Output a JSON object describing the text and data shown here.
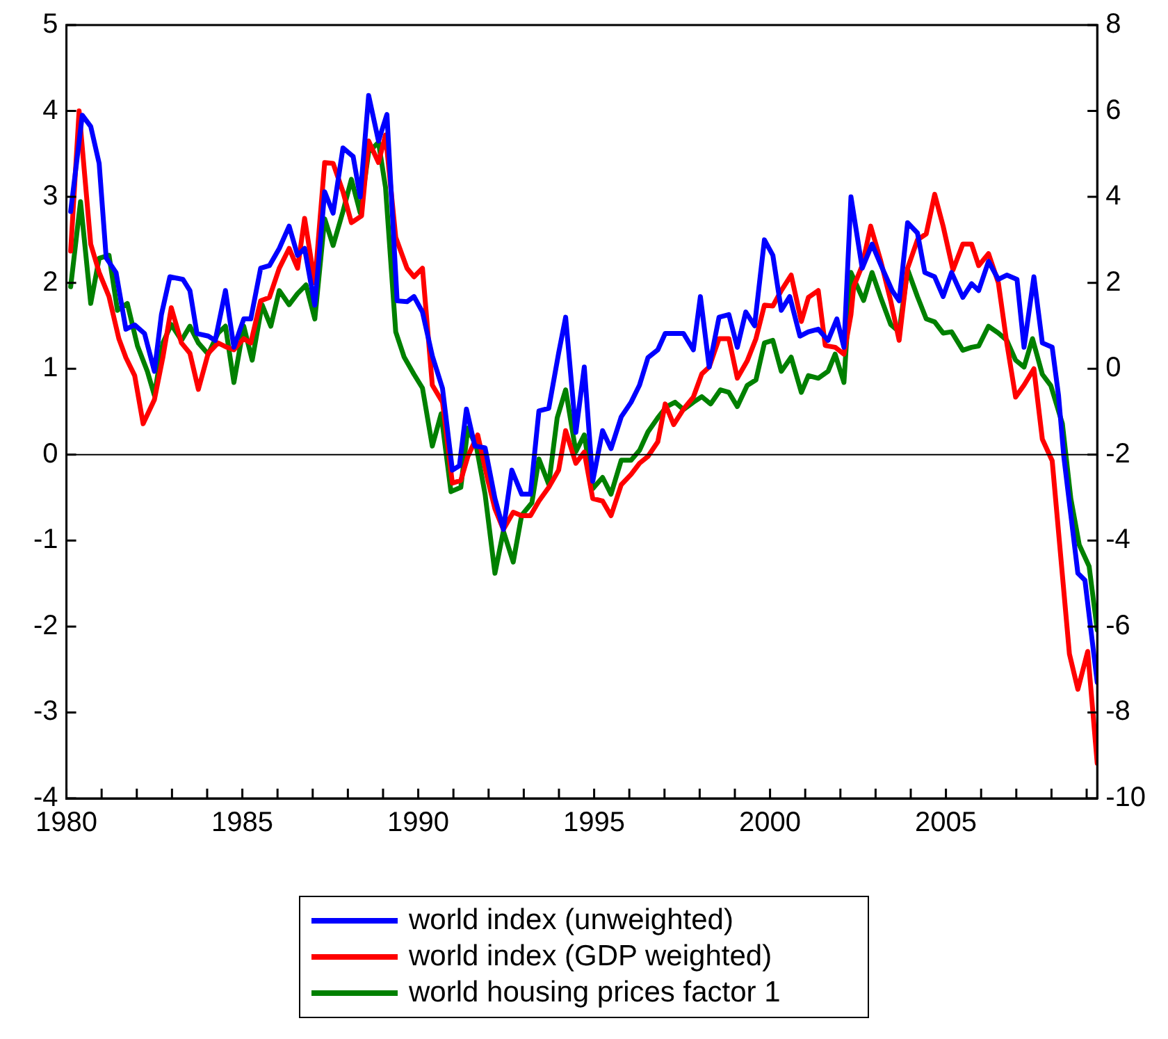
{
  "chart_data": {
    "type": "line",
    "xlim": [
      1980,
      2009.3
    ],
    "xticks": [
      1980,
      {
        "value": 1981,
        "label": null
      },
      {
        "value": 1982,
        "label": null
      },
      {
        "value": 1983,
        "label": null
      },
      {
        "value": 1984,
        "label": null
      },
      1985,
      {
        "value": 1986,
        "label": null
      },
      {
        "value": 1987,
        "label": null
      },
      {
        "value": 1988,
        "label": null
      },
      {
        "value": 1989,
        "label": null
      },
      1990,
      {
        "value": 1991,
        "label": null
      },
      {
        "value": 1992,
        "label": null
      },
      {
        "value": 1993,
        "label": null
      },
      {
        "value": 1994,
        "label": null
      },
      1995,
      {
        "value": 1996,
        "label": null
      },
      {
        "value": 1997,
        "label": null
      },
      {
        "value": 1998,
        "label": null
      },
      {
        "value": 1999,
        "label": null
      },
      2000,
      {
        "value": 2001,
        "label": null
      },
      {
        "value": 2002,
        "label": null
      },
      {
        "value": 2003,
        "label": null
      },
      {
        "value": 2004,
        "label": null
      },
      2005,
      {
        "value": 2006,
        "label": null
      },
      {
        "value": 2007,
        "label": null
      },
      {
        "value": 2008,
        "label": null
      },
      {
        "value": 2009,
        "label": null
      }
    ],
    "ylim": [
      -4,
      5
    ],
    "yticks": [
      -4,
      -3,
      -2,
      -1,
      0,
      1,
      2,
      3,
      4,
      5
    ],
    "y2lim": [
      -10,
      8
    ],
    "y2ticks": [
      -10,
      -8,
      -6,
      -4,
      -2,
      0,
      2,
      4,
      6,
      8
    ],
    "grid": false,
    "legend": "bottom",
    "marker": "none",
    "line_style": "solid",
    "ref_lines": [
      {
        "axis": "y",
        "value": 0,
        "color": "#000000"
      }
    ],
    "series": [
      {
        "name": "world index (unweighted)",
        "color": "#0000ff",
        "x": [
          1980.12,
          1980.45,
          1980.69,
          1980.93,
          1981.13,
          1981.41,
          1981.69,
          1981.94,
          1982.22,
          1982.5,
          1982.7,
          1982.94,
          1983.31,
          1983.51,
          1983.71,
          1984.03,
          1984.23,
          1984.52,
          1984.76,
          1985.04,
          1985.24,
          1985.52,
          1985.77,
          1986.05,
          1986.33,
          1986.57,
          1986.77,
          1987.06,
          1987.34,
          1987.58,
          1987.86,
          1988.15,
          1988.35,
          1988.59,
          1988.87,
          1989.11,
          1989.4,
          1989.68,
          1989.88,
          1990.12,
          1990.4,
          1990.69,
          1990.97,
          1991.17,
          1991.37,
          1991.61,
          1991.9,
          1992.18,
          1992.42,
          1992.66,
          1992.94,
          1993.19,
          1993.43,
          1993.71,
          1993.99,
          1994.19,
          1994.48,
          1994.72,
          1994.96,
          1995.24,
          1995.48,
          1995.77,
          1996.05,
          1996.29,
          1996.53,
          1996.81,
          1997.02,
          1997.54,
          1997.82,
          1998.02,
          1998.27,
          1998.55,
          1998.83,
          1999.07,
          1999.31,
          1999.56,
          1999.84,
          2000.08,
          2000.32,
          2000.56,
          2000.85,
          2001.09,
          2001.37,
          2001.65,
          2001.9,
          2002.1,
          2002.3,
          2002.62,
          2002.9,
          2003.19,
          2003.47,
          2003.67,
          2003.91,
          2004.19,
          2004.4,
          2004.68,
          2004.92,
          2005.16,
          2005.48,
          2005.73,
          2005.93,
          2006.21,
          2006.49,
          2006.73,
          2007.02,
          2007.22,
          2007.5,
          2007.74,
          2008.02,
          2008.2,
          2008.35,
          2008.75,
          2008.95,
          2009.3
        ],
        "values": [
          2.83,
          3.95,
          3.82,
          3.39,
          2.29,
          2.12,
          1.46,
          1.51,
          1.41,
          0.97,
          1.63,
          2.07,
          2.04,
          1.91,
          1.41,
          1.38,
          1.33,
          1.91,
          1.25,
          1.58,
          1.58,
          2.17,
          2.2,
          2.4,
          2.66,
          2.32,
          2.4,
          1.74,
          3.06,
          2.81,
          3.57,
          3.47,
          3.0,
          4.18,
          3.65,
          3.96,
          1.79,
          1.78,
          1.84,
          1.66,
          1.15,
          0.77,
          -0.18,
          -0.13,
          0.53,
          0.1,
          0.08,
          -0.51,
          -0.87,
          -0.18,
          -0.46,
          -0.46,
          0.51,
          0.54,
          1.18,
          1.6,
          0.26,
          1.02,
          -0.31,
          0.28,
          0.07,
          0.44,
          0.61,
          0.81,
          1.13,
          1.22,
          1.41,
          1.41,
          1.22,
          1.84,
          1.02,
          1.6,
          1.63,
          1.25,
          1.66,
          1.5,
          2.5,
          2.32,
          1.68,
          1.84,
          1.38,
          1.43,
          1.46,
          1.33,
          1.58,
          1.25,
          3.0,
          2.17,
          2.45,
          2.17,
          1.91,
          1.79,
          2.7,
          2.58,
          2.12,
          2.07,
          1.84,
          2.12,
          1.83,
          1.99,
          1.91,
          2.25,
          2.04,
          2.09,
          2.04,
          1.25,
          2.07,
          1.3,
          1.25,
          0.69,
          -0.02,
          -1.38,
          -1.46,
          -2.65
        ]
      },
      {
        "name": "world index (GDP weighted)",
        "color": "#ff0000",
        "x": [
          1980.12,
          1980.36,
          1980.69,
          1980.93,
          1981.21,
          1981.49,
          1981.69,
          1981.94,
          1982.18,
          1982.5,
          1982.74,
          1982.98,
          1983.27,
          1983.51,
          1983.75,
          1984.03,
          1984.31,
          1984.56,
          1984.76,
          1985.04,
          1985.24,
          1985.52,
          1985.77,
          1986.05,
          1986.33,
          1986.57,
          1986.77,
          1987.06,
          1987.34,
          1987.58,
          1987.86,
          1988.1,
          1988.39,
          1988.59,
          1988.87,
          1989.07,
          1989.36,
          1989.68,
          1989.88,
          1990.12,
          1990.4,
          1990.69,
          1990.97,
          1991.21,
          1991.41,
          1991.69,
          1991.98,
          1992.18,
          1992.42,
          1992.7,
          1992.94,
          1993.19,
          1993.43,
          1993.71,
          1993.99,
          1994.19,
          1994.48,
          1994.72,
          1994.96,
          1995.24,
          1995.48,
          1995.77,
          1996.05,
          1996.29,
          1996.53,
          1996.81,
          1997.02,
          1997.26,
          1997.54,
          1997.82,
          1998.06,
          1998.27,
          1998.55,
          1998.83,
          1999.07,
          1999.35,
          1999.6,
          1999.84,
          2000.08,
          2000.32,
          2000.6,
          2000.89,
          2001.09,
          2001.37,
          2001.57,
          2001.85,
          2002.1,
          2002.3,
          2002.38,
          2002.62,
          2002.86,
          2003.15,
          2003.43,
          2003.67,
          2003.91,
          2004.19,
          2004.44,
          2004.68,
          2004.92,
          2005.2,
          2005.48,
          2005.73,
          2005.93,
          2006.21,
          2006.49,
          2006.73,
          2006.98,
          2007.22,
          2007.5,
          2007.74,
          2008.02,
          2008.51,
          2008.75,
          2009.03,
          2009.3
        ],
        "values": [
          2.37,
          4.0,
          2.45,
          2.12,
          1.84,
          1.35,
          1.13,
          0.92,
          0.36,
          0.64,
          1.13,
          1.71,
          1.3,
          1.18,
          0.76,
          1.18,
          1.3,
          1.25,
          1.22,
          1.35,
          1.3,
          1.79,
          1.83,
          2.17,
          2.4,
          2.17,
          2.75,
          2.0,
          3.4,
          3.39,
          3.06,
          2.7,
          2.78,
          3.65,
          3.4,
          3.72,
          2.53,
          2.17,
          2.07,
          2.17,
          0.81,
          0.61,
          -0.33,
          -0.3,
          -0.02,
          0.23,
          -0.3,
          -0.63,
          -0.87,
          -0.67,
          -0.71,
          -0.71,
          -0.54,
          -0.38,
          -0.18,
          0.28,
          -0.1,
          0.03,
          -0.51,
          -0.54,
          -0.71,
          -0.35,
          -0.23,
          -0.1,
          -0.02,
          0.15,
          0.59,
          0.35,
          0.53,
          0.67,
          0.94,
          1.02,
          1.35,
          1.35,
          0.89,
          1.09,
          1.35,
          1.74,
          1.73,
          1.91,
          2.09,
          1.55,
          1.83,
          1.91,
          1.27,
          1.25,
          1.17,
          1.63,
          1.96,
          2.2,
          2.66,
          2.25,
          1.79,
          1.33,
          2.17,
          2.5,
          2.57,
          3.03,
          2.66,
          2.15,
          2.45,
          2.45,
          2.2,
          2.34,
          2.0,
          1.3,
          0.67,
          0.81,
          1.0,
          0.18,
          -0.07,
          -2.32,
          -2.73,
          -2.29,
          -3.59
        ]
      },
      {
        "name": "world housing prices factor 1",
        "color": "#008000",
        "axis": "y2",
        "x": [
          1980.12,
          1980.4,
          1980.69,
          1980.93,
          1981.21,
          1981.45,
          1981.73,
          1982.02,
          1982.3,
          1982.5,
          1982.74,
          1982.98,
          1983.27,
          1983.51,
          1983.75,
          1984.03,
          1984.31,
          1984.52,
          1984.76,
          1985.04,
          1985.28,
          1985.56,
          1985.81,
          1986.05,
          1986.33,
          1986.57,
          1986.81,
          1987.06,
          1987.34,
          1987.58,
          1987.86,
          1988.1,
          1988.35,
          1988.59,
          1988.87,
          1989.07,
          1989.36,
          1989.6,
          1989.88,
          1990.12,
          1990.4,
          1990.65,
          1990.93,
          1991.21,
          1991.41,
          1991.65,
          1991.9,
          1992.18,
          1992.42,
          1992.7,
          1992.94,
          1993.23,
          1993.43,
          1993.71,
          1993.95,
          1994.19,
          1994.48,
          1994.72,
          1994.96,
          1995.24,
          1995.48,
          1995.77,
          1996.05,
          1996.29,
          1996.53,
          1996.81,
          1997.06,
          1997.3,
          1997.54,
          1997.82,
          1998.06,
          1998.31,
          1998.59,
          1998.83,
          1999.07,
          1999.35,
          1999.6,
          1999.84,
          2000.08,
          2000.32,
          2000.6,
          2000.89,
          2001.09,
          2001.37,
          2001.65,
          2001.85,
          2002.1,
          2002.3,
          2002.66,
          2002.9,
          2003.15,
          2003.43,
          2003.67,
          2003.91,
          2004.19,
          2004.44,
          2004.68,
          2004.92,
          2005.16,
          2005.48,
          2005.73,
          2005.93,
          2006.21,
          2006.49,
          2006.73,
          2006.98,
          2007.22,
          2007.46,
          2007.74,
          2007.98,
          2008.31,
          2008.55,
          2008.79,
          2009.07,
          2009.3
        ],
        "values": [
          1.91,
          3.89,
          1.52,
          2.57,
          2.64,
          1.36,
          1.52,
          0.53,
          -0.06,
          -0.62,
          0.6,
          1.03,
          0.66,
          0.99,
          0.6,
          0.34,
          0.83,
          0.99,
          -0.32,
          0.99,
          0.2,
          1.49,
          0.99,
          1.82,
          1.49,
          1.75,
          1.95,
          1.16,
          3.49,
          2.87,
          3.66,
          4.41,
          3.63,
          5.04,
          5.27,
          4.22,
          0.86,
          0.27,
          -0.13,
          -0.45,
          -1.8,
          -1.05,
          -2.86,
          -2.76,
          -1.38,
          -1.8,
          -2.92,
          -4.76,
          -3.78,
          -4.5,
          -3.41,
          -3.12,
          -2.1,
          -2.69,
          -1.14,
          -0.49,
          -1.93,
          -1.54,
          -2.79,
          -2.53,
          -2.92,
          -2.13,
          -2.13,
          -1.9,
          -1.47,
          -1.14,
          -0.88,
          -0.78,
          -0.95,
          -0.78,
          -0.65,
          -0.82,
          -0.49,
          -0.55,
          -0.88,
          -0.39,
          -0.26,
          0.6,
          0.66,
          -0.06,
          0.27,
          -0.55,
          -0.16,
          -0.22,
          -0.06,
          0.34,
          -0.32,
          2.24,
          1.59,
          2.24,
          1.65,
          1.03,
          0.86,
          2.31,
          1.68,
          1.16,
          1.09,
          0.83,
          0.86,
          0.43,
          0.5,
          0.53,
          0.99,
          0.83,
          0.66,
          0.2,
          0.04,
          0.7,
          -0.13,
          -0.39,
          -1.28,
          -3.02,
          -4.1,
          -4.6,
          -6.08
        ]
      }
    ]
  }
}
